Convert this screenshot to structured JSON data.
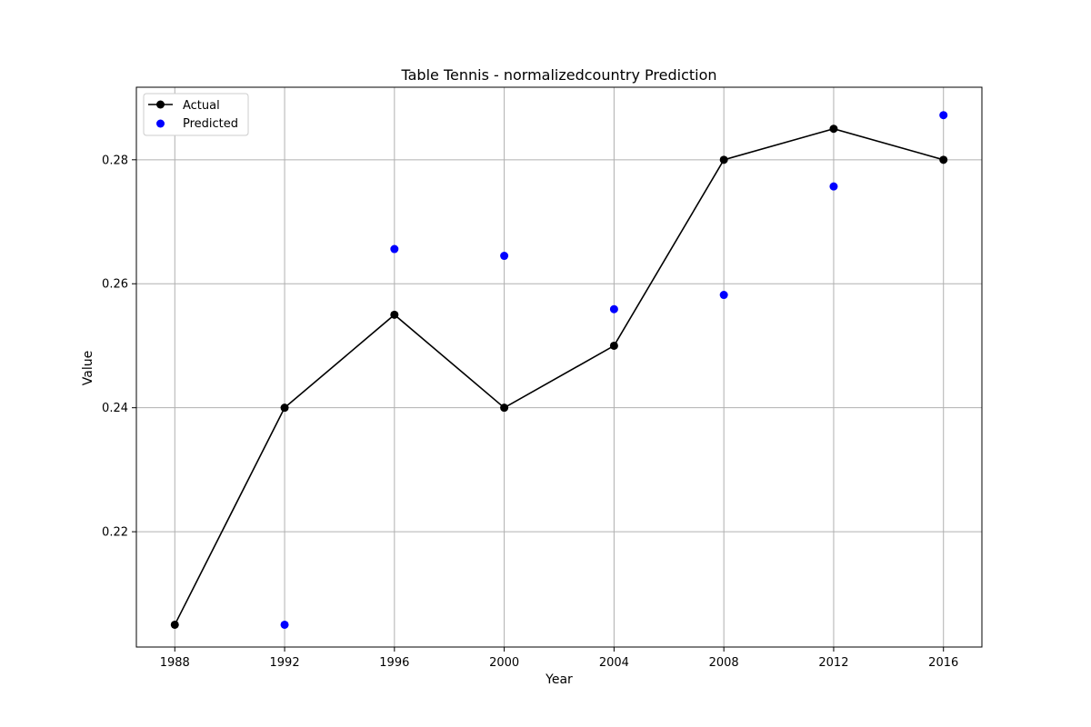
{
  "chart_data": {
    "type": "line",
    "title": "Table Tennis - normalizedcountry Prediction",
    "xlabel": "Year",
    "ylabel": "Value",
    "x": [
      1988,
      1992,
      1996,
      2000,
      2004,
      2008,
      2012,
      2016
    ],
    "x_ticks": [
      "1988",
      "1992",
      "1996",
      "2000",
      "2004",
      "2008",
      "2012",
      "2016"
    ],
    "y_ticks": [
      "0.22",
      "0.24",
      "0.26",
      "0.28"
    ],
    "y_tick_values": [
      0.22,
      0.24,
      0.26,
      0.28
    ],
    "xlim": [
      1986.6,
      2017.4
    ],
    "ylim": [
      0.2014,
      0.2917
    ],
    "grid": true,
    "legend_position": "top-left",
    "series": [
      {
        "name": "Actual",
        "style": "line-with-markers",
        "color": "#000000",
        "values": [
          0.205,
          0.24,
          0.255,
          0.24,
          0.25,
          0.28,
          0.285,
          0.28
        ]
      },
      {
        "name": "Predicted",
        "style": "scatter",
        "color": "#0000ff",
        "values": [
          null,
          0.205,
          0.2656,
          0.2645,
          0.2559,
          0.2582,
          0.2757,
          0.2872
        ]
      }
    ]
  }
}
